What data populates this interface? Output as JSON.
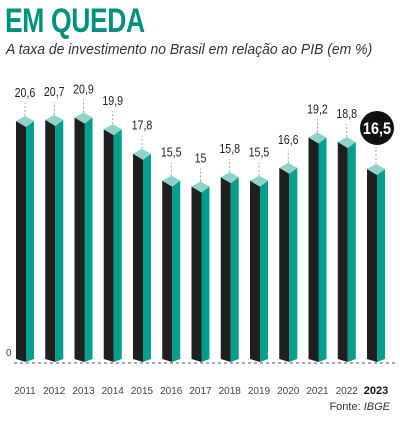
{
  "title": "EM QUEDA",
  "subtitle": "A taxa de investimento no Brasil em relação ao PIB (em %)",
  "source": {
    "label": "Fonte:",
    "name": "IBGE"
  },
  "colors": {
    "accent": "#00917d",
    "bar_front": "#1f1f1f",
    "bar_side": "#00a08c",
    "bar_top": "#8fd3c8",
    "highlight_circle": "#111111",
    "highlight_text": "#ffffff"
  },
  "chart_data": {
    "type": "bar",
    "title": "EM QUEDA",
    "subtitle": "A taxa de investimento no Brasil em relação ao PIB (em %)",
    "categories": [
      "2011",
      "2012",
      "2013",
      "2014",
      "2015",
      "2016",
      "2017",
      "2018",
      "2019",
      "2020",
      "2021",
      "2022",
      "2023"
    ],
    "values": [
      20.6,
      20.7,
      20.9,
      19.9,
      17.8,
      15.5,
      15,
      15.8,
      15.5,
      16.6,
      19.2,
      18.8,
      16.5
    ],
    "value_labels": [
      "20,6",
      "20,7",
      "20,9",
      "19,9",
      "17,8",
      "15,5",
      "15",
      "15,8",
      "15,5",
      "16,6",
      "19,2",
      "18,8",
      "16,5"
    ],
    "highlight_index": 12,
    "baseline_label": "0",
    "ylim": [
      0,
      21
    ],
    "xlabel": "",
    "ylabel": "",
    "grid": false,
    "legend": "none"
  }
}
